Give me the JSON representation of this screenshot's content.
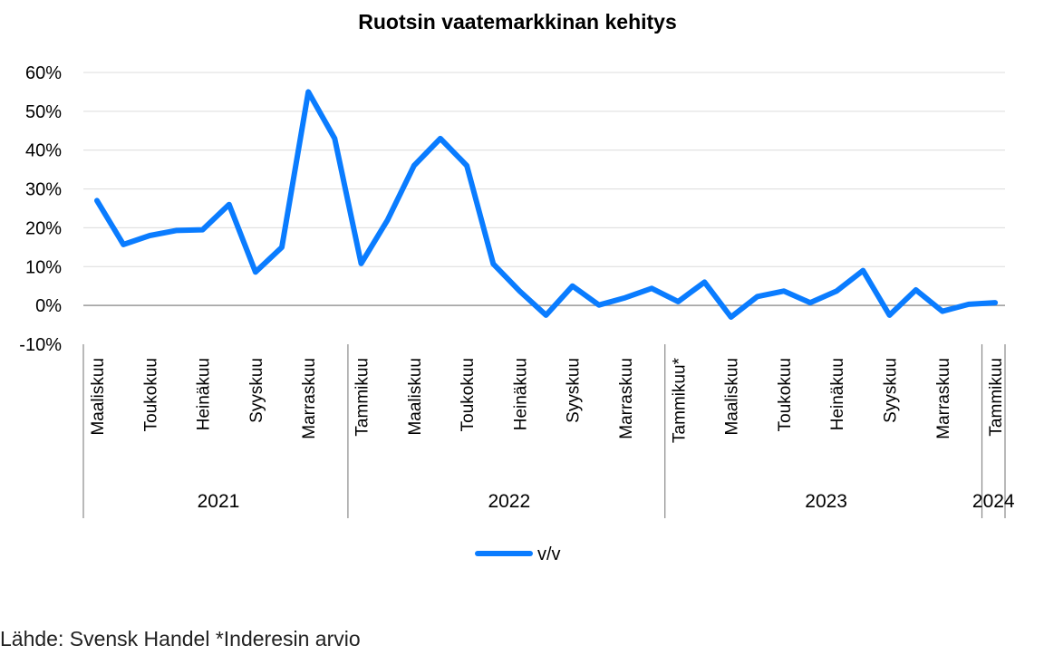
{
  "chart_data": {
    "type": "line",
    "title": "Ruotsin vaatemarkkinan kehitys",
    "y_tick_labels": [
      "-10%",
      "0%",
      "10%",
      "20%",
      "30%",
      "40%",
      "50%",
      "60%"
    ],
    "ylim": [
      -10,
      60
    ],
    "grid": true,
    "legend_position": "bottom",
    "series": [
      {
        "name": "v/v",
        "color": "#0a7cff",
        "values": [
          27,
          15.7,
          18,
          19.3,
          19.5,
          26,
          8.6,
          15,
          55,
          43,
          10.8,
          22,
          36,
          43,
          36,
          10.7,
          3.7,
          -2.5,
          5,
          0.1,
          2,
          4.4,
          1,
          6,
          -3,
          2.3,
          3.7,
          0.7,
          3.7,
          9,
          -2.5,
          4,
          -1.5,
          0.3,
          0.7
        ]
      }
    ],
    "month_ticks": [
      {
        "index": 0,
        "label": "Maaliskuu"
      },
      {
        "index": 2,
        "label": "Toukokuu"
      },
      {
        "index": 4,
        "label": "Heinäkuu"
      },
      {
        "index": 6,
        "label": "Syyskuu"
      },
      {
        "index": 8,
        "label": "Marraskuu"
      },
      {
        "index": 10,
        "label": "Tammikuu"
      },
      {
        "index": 12,
        "label": "Maaliskuu"
      },
      {
        "index": 14,
        "label": "Toukokuu"
      },
      {
        "index": 16,
        "label": "Heinäkuu"
      },
      {
        "index": 18,
        "label": "Syyskuu"
      },
      {
        "index": 20,
        "label": "Marraskuu"
      },
      {
        "index": 22,
        "label": "Tammikuu*"
      },
      {
        "index": 24,
        "label": "Maaliskuu"
      },
      {
        "index": 26,
        "label": "Toukokuu"
      },
      {
        "index": 28,
        "label": "Heinäkuu"
      },
      {
        "index": 30,
        "label": "Syyskuu"
      },
      {
        "index": 32,
        "label": "Marraskuu"
      },
      {
        "index": 34,
        "label": "Tammikuu"
      }
    ],
    "years": [
      {
        "label": "2021",
        "start": 0,
        "end": 9
      },
      {
        "label": "2022",
        "start": 10,
        "end": 21
      },
      {
        "label": "2023",
        "start": 22,
        "end": 33
      },
      {
        "label": "2024",
        "start": 34,
        "end": 34
      }
    ]
  },
  "source": "Lähde: Svensk Handel *Inderesin arvio"
}
